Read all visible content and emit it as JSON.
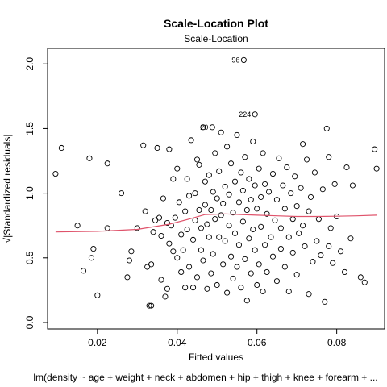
{
  "chart_data": {
    "type": "scatter",
    "title": "Scale-Location Plot",
    "subtitle": "Scale-Location",
    "xlabel": "Fitted values",
    "xlabel2": "lm(density ~ age + weight + neck + abdomen + hip + thigh + knee + forearm + ...",
    "ylabel": "√|Standardized residuals|",
    "xlim": [
      0.0075,
      0.092
    ],
    "ylim": [
      -0.05,
      2.12
    ],
    "x_ticks": [
      0.02,
      0.04,
      0.06,
      0.08
    ],
    "x_tick_labels": [
      "0.02",
      "0.04",
      "0.06",
      "0.08"
    ],
    "y_ticks": [
      0.0,
      0.5,
      1.0,
      1.5,
      2.0
    ],
    "y_tick_labels": [
      "0.0",
      "0.5",
      "1.0",
      "1.5",
      "2.0"
    ],
    "grid": false,
    "colors": {
      "points": "#000000",
      "smooth": "#df536b",
      "axis": "#000000"
    },
    "labeled_points": [
      {
        "label": "96",
        "x": 0.0567,
        "y": 2.03
      },
      {
        "label": "224",
        "x": 0.0595,
        "y": 1.61
      },
      {
        "label": "20",
        "x": 0.0488,
        "y": 1.51
      }
    ],
    "smooth": {
      "x": [
        0.0095,
        0.02,
        0.03,
        0.038,
        0.043,
        0.047,
        0.052,
        0.056,
        0.06,
        0.065,
        0.07,
        0.075,
        0.08,
        0.085,
        0.09
      ],
      "y": [
        0.7,
        0.705,
        0.72,
        0.76,
        0.8,
        0.835,
        0.84,
        0.835,
        0.83,
        0.825,
        0.82,
        0.82,
        0.822,
        0.825,
        0.83
      ]
    },
    "points": [
      {
        "x": 0.0095,
        "y": 1.15
      },
      {
        "x": 0.011,
        "y": 1.35
      },
      {
        "x": 0.015,
        "y": 0.75
      },
      {
        "x": 0.0165,
        "y": 0.4
      },
      {
        "x": 0.018,
        "y": 1.27
      },
      {
        "x": 0.0185,
        "y": 0.5
      },
      {
        "x": 0.019,
        "y": 0.57
      },
      {
        "x": 0.02,
        "y": 0.21
      },
      {
        "x": 0.0225,
        "y": 0.73
      },
      {
        "x": 0.0225,
        "y": 1.23
      },
      {
        "x": 0.026,
        "y": 1.0
      },
      {
        "x": 0.0275,
        "y": 0.35
      },
      {
        "x": 0.028,
        "y": 0.48
      },
      {
        "x": 0.0285,
        "y": 0.55
      },
      {
        "x": 0.03,
        "y": 0.73
      },
      {
        "x": 0.0315,
        "y": 1.37
      },
      {
        "x": 0.032,
        "y": 0.86
      },
      {
        "x": 0.0325,
        "y": 0.43
      },
      {
        "x": 0.033,
        "y": 0.13
      },
      {
        "x": 0.0335,
        "y": 0.13
      },
      {
        "x": 0.0335,
        "y": 0.45
      },
      {
        "x": 0.034,
        "y": 0.7
      },
      {
        "x": 0.0345,
        "y": 0.79
      },
      {
        "x": 0.035,
        "y": 1.35
      },
      {
        "x": 0.0355,
        "y": 0.81
      },
      {
        "x": 0.036,
        "y": 0.67
      },
      {
        "x": 0.036,
        "y": 0.33
      },
      {
        "x": 0.0365,
        "y": 0.96
      },
      {
        "x": 0.037,
        "y": 0.2
      },
      {
        "x": 0.0375,
        "y": 0.26
      },
      {
        "x": 0.0375,
        "y": 0.77
      },
      {
        "x": 0.038,
        "y": 0.61
      },
      {
        "x": 0.038,
        "y": 1.34
      },
      {
        "x": 0.0385,
        "y": 0.75
      },
      {
        "x": 0.039,
        "y": 1.11
      },
      {
        "x": 0.039,
        "y": 0.55
      },
      {
        "x": 0.0395,
        "y": 0.81
      },
      {
        "x": 0.04,
        "y": 0.5
      },
      {
        "x": 0.04,
        "y": 1.19
      },
      {
        "x": 0.0405,
        "y": 0.93
      },
      {
        "x": 0.041,
        "y": 0.68
      },
      {
        "x": 0.041,
        "y": 0.39
      },
      {
        "x": 0.0415,
        "y": 0.56
      },
      {
        "x": 0.042,
        "y": 0.27
      },
      {
        "x": 0.042,
        "y": 0.86
      },
      {
        "x": 0.0425,
        "y": 1.11
      },
      {
        "x": 0.0425,
        "y": 0.72
      },
      {
        "x": 0.043,
        "y": 0.43
      },
      {
        "x": 0.043,
        "y": 0.98
      },
      {
        "x": 0.0435,
        "y": 1.41
      },
      {
        "x": 0.044,
        "y": 0.27
      },
      {
        "x": 0.044,
        "y": 0.64
      },
      {
        "x": 0.0445,
        "y": 1.0
      },
      {
        "x": 0.0445,
        "y": 0.79
      },
      {
        "x": 0.045,
        "y": 1.26
      },
      {
        "x": 0.045,
        "y": 0.35
      },
      {
        "x": 0.0455,
        "y": 0.87
      },
      {
        "x": 0.0455,
        "y": 1.22
      },
      {
        "x": 0.046,
        "y": 0.56
      },
      {
        "x": 0.046,
        "y": 0.73
      },
      {
        "x": 0.0465,
        "y": 1.51
      },
      {
        "x": 0.0465,
        "y": 0.48
      },
      {
        "x": 0.047,
        "y": 0.91
      },
      {
        "x": 0.047,
        "y": 1.09
      },
      {
        "x": 0.0475,
        "y": 0.76
      },
      {
        "x": 0.0475,
        "y": 0.26
      },
      {
        "x": 0.048,
        "y": 1.14
      },
      {
        "x": 0.048,
        "y": 0.66
      },
      {
        "x": 0.0485,
        "y": 0.87
      },
      {
        "x": 0.0485,
        "y": 0.38
      },
      {
        "x": 0.049,
        "y": 1.01
      },
      {
        "x": 0.049,
        "y": 0.53
      },
      {
        "x": 0.0495,
        "y": 1.31
      },
      {
        "x": 0.0495,
        "y": 0.8
      },
      {
        "x": 0.05,
        "y": 0.96
      },
      {
        "x": 0.05,
        "y": 0.29
      },
      {
        "x": 0.0505,
        "y": 1.17
      },
      {
        "x": 0.0505,
        "y": 0.66
      },
      {
        "x": 0.051,
        "y": 0.83
      },
      {
        "x": 0.051,
        "y": 1.47
      },
      {
        "x": 0.0515,
        "y": 0.45
      },
      {
        "x": 0.0515,
        "y": 0.92
      },
      {
        "x": 0.052,
        "y": 1.05
      },
      {
        "x": 0.052,
        "y": 0.63
      },
      {
        "x": 0.0525,
        "y": 0.23
      },
      {
        "x": 0.0525,
        "y": 1.36
      },
      {
        "x": 0.053,
        "y": 0.75
      },
      {
        "x": 0.053,
        "y": 0.99
      },
      {
        "x": 0.0535,
        "y": 0.51
      },
      {
        "x": 0.0535,
        "y": 1.23
      },
      {
        "x": 0.054,
        "y": 0.85
      },
      {
        "x": 0.054,
        "y": 0.34
      },
      {
        "x": 0.0545,
        "y": 1.09
      },
      {
        "x": 0.0545,
        "y": 0.69
      },
      {
        "x": 0.055,
        "y": 0.43
      },
      {
        "x": 0.055,
        "y": 1.45
      },
      {
        "x": 0.0555,
        "y": 0.93
      },
      {
        "x": 0.0555,
        "y": 0.6
      },
      {
        "x": 0.056,
        "y": 1.16
      },
      {
        "x": 0.056,
        "y": 0.27
      },
      {
        "x": 0.0565,
        "y": 0.78
      },
      {
        "x": 0.0565,
        "y": 1.02
      },
      {
        "x": 0.057,
        "y": 0.49
      },
      {
        "x": 0.057,
        "y": 1.28
      },
      {
        "x": 0.0575,
        "y": 0.87
      },
      {
        "x": 0.0575,
        "y": 0.17
      },
      {
        "x": 0.058,
        "y": 1.11
      },
      {
        "x": 0.058,
        "y": 0.65
      },
      {
        "x": 0.0585,
        "y": 0.95
      },
      {
        "x": 0.0585,
        "y": 0.38
      },
      {
        "x": 0.059,
        "y": 1.4
      },
      {
        "x": 0.059,
        "y": 0.72
      },
      {
        "x": 0.0595,
        "y": 0.56
      },
      {
        "x": 0.0595,
        "y": 1.06
      },
      {
        "x": 0.06,
        "y": 0.29
      },
      {
        "x": 0.06,
        "y": 0.88
      },
      {
        "x": 0.0605,
        "y": 1.19
      },
      {
        "x": 0.0605,
        "y": 0.45
      },
      {
        "x": 0.061,
        "y": 0.97
      },
      {
        "x": 0.061,
        "y": 0.74
      },
      {
        "x": 0.0615,
        "y": 0.24
      },
      {
        "x": 0.0615,
        "y": 1.31
      },
      {
        "x": 0.062,
        "y": 0.6
      },
      {
        "x": 0.062,
        "y": 1.07
      },
      {
        "x": 0.0625,
        "y": 0.84
      },
      {
        "x": 0.0625,
        "y": 0.39
      },
      {
        "x": 0.063,
        "y": 1.01
      },
      {
        "x": 0.0635,
        "y": 0.66
      },
      {
        "x": 0.064,
        "y": 0.51
      },
      {
        "x": 0.064,
        "y": 1.15
      },
      {
        "x": 0.0645,
        "y": 0.79
      },
      {
        "x": 0.065,
        "y": 0.32
      },
      {
        "x": 0.065,
        "y": 0.95
      },
      {
        "x": 0.0655,
        "y": 1.27
      },
      {
        "x": 0.066,
        "y": 0.57
      },
      {
        "x": 0.066,
        "y": 0.73
      },
      {
        "x": 0.0665,
        "y": 1.06
      },
      {
        "x": 0.067,
        "y": 0.43
      },
      {
        "x": 0.067,
        "y": 0.88
      },
      {
        "x": 0.0675,
        "y": 1.2
      },
      {
        "x": 0.068,
        "y": 0.66
      },
      {
        "x": 0.068,
        "y": 0.24
      },
      {
        "x": 0.0685,
        "y": 1.0
      },
      {
        "x": 0.069,
        "y": 0.8
      },
      {
        "x": 0.069,
        "y": 0.54
      },
      {
        "x": 0.0695,
        "y": 1.13
      },
      {
        "x": 0.07,
        "y": 0.9
      },
      {
        "x": 0.07,
        "y": 0.37
      },
      {
        "x": 0.0705,
        "y": 0.69
      },
      {
        "x": 0.071,
        "y": 1.04
      },
      {
        "x": 0.0715,
        "y": 0.75
      },
      {
        "x": 0.0715,
        "y": 1.38
      },
      {
        "x": 0.072,
        "y": 0.59
      },
      {
        "x": 0.0725,
        "y": 1.26
      },
      {
        "x": 0.073,
        "y": 0.22
      },
      {
        "x": 0.073,
        "y": 0.86
      },
      {
        "x": 0.0735,
        "y": 0.97
      },
      {
        "x": 0.074,
        "y": 0.47
      },
      {
        "x": 0.0745,
        "y": 1.16
      },
      {
        "x": 0.075,
        "y": 0.63
      },
      {
        "x": 0.0755,
        "y": 0.8
      },
      {
        "x": 0.076,
        "y": 0.52
      },
      {
        "x": 0.0765,
        "y": 1.03
      },
      {
        "x": 0.077,
        "y": 0.16
      },
      {
        "x": 0.0775,
        "y": 1.5
      },
      {
        "x": 0.078,
        "y": 0.59
      },
      {
        "x": 0.078,
        "y": 1.28
      },
      {
        "x": 0.0785,
        "y": 0.73
      },
      {
        "x": 0.079,
        "y": 0.46
      },
      {
        "x": 0.0795,
        "y": 1.07
      },
      {
        "x": 0.08,
        "y": 0.82
      },
      {
        "x": 0.081,
        "y": 0.55
      },
      {
        "x": 0.082,
        "y": 0.39
      },
      {
        "x": 0.0825,
        "y": 1.2
      },
      {
        "x": 0.0835,
        "y": 0.65
      },
      {
        "x": 0.084,
        "y": 1.06
      },
      {
        "x": 0.086,
        "y": 0.35
      },
      {
        "x": 0.087,
        "y": 0.31
      },
      {
        "x": 0.0895,
        "y": 1.34
      },
      {
        "x": 0.09,
        "y": 1.19
      },
      {
        "x": 0.0567,
        "y": 2.03
      },
      {
        "x": 0.0595,
        "y": 1.61
      },
      {
        "x": 0.0488,
        "y": 1.51
      }
    ]
  }
}
